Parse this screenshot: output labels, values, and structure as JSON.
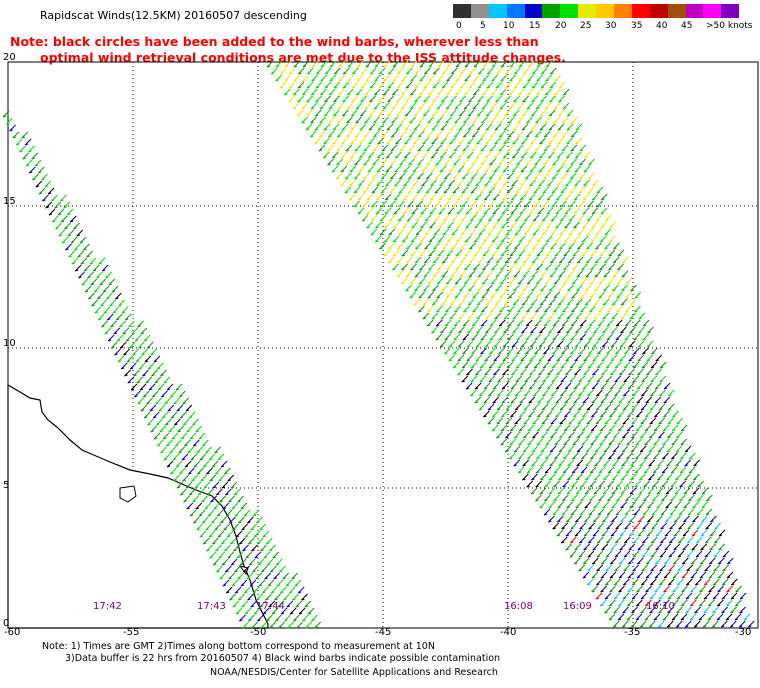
{
  "title": "Rapidscat Winds(12.5KM) 20160507 descending",
  "note": {
    "line1": "Note: black circles have been added to the wind barbs, wherever less than",
    "line2": "optimal wind retrieval conditions are met due to the ISS attitude changes."
  },
  "legend": {
    "unit_label": ">50 knots",
    "labels": [
      "0",
      "5",
      "10",
      "15",
      "20",
      "25",
      "30",
      "35",
      "40",
      "45"
    ],
    "colors": [
      "#303030",
      "#909090",
      "#00c8ff",
      "#0078ff",
      "#0000c8",
      "#00a000",
      "#00e000",
      "#e8e800",
      "#ffc800",
      "#ff8000",
      "#ff0000",
      "#c00000",
      "#a05000",
      "#c000c0",
      "#ff00ff",
      "#8000c0"
    ]
  },
  "map": {
    "lat_labels": [
      "20",
      "15",
      "10",
      "5",
      "0"
    ],
    "lon_labels": [
      "-60",
      "-55",
      "-50",
      "-45",
      "-40",
      "-35",
      "-30"
    ],
    "pass_times": [
      "17:42",
      "17:43",
      "17:44",
      "16:08",
      "16:09",
      "16:10"
    ]
  },
  "footer": {
    "line1": "Note: 1) Times are GMT 2)Times along bottom correspond to measurement at 10N",
    "line2": "3)Data buffer is 22 hrs from 20160507 4) Black wind barbs indicate possible contamination",
    "line3": "NOAA/NESDIS/Center for Satellite Applications and Research"
  }
}
